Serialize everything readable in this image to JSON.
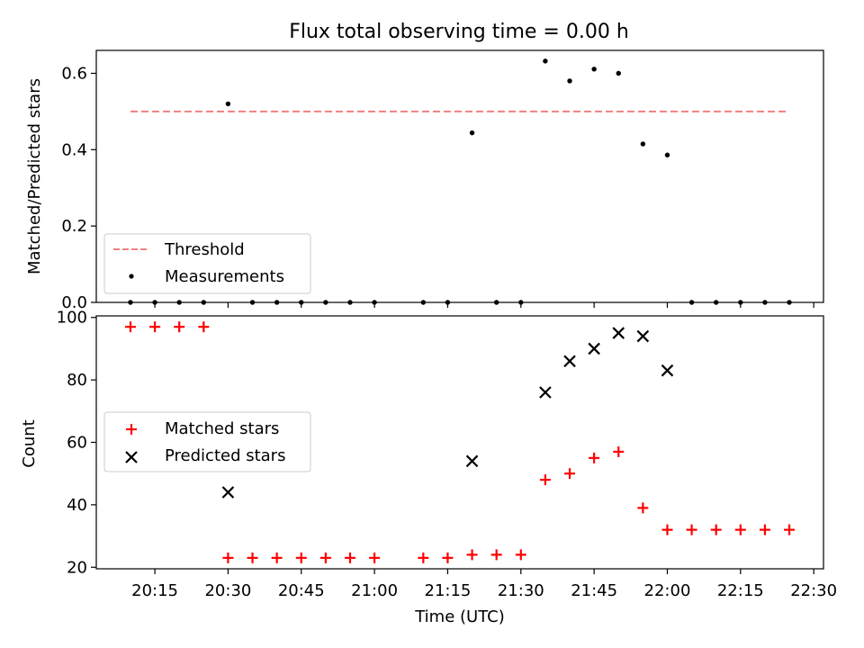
{
  "chart_data": [
    {
      "type": "scatter",
      "title": "Flux total observing time = 0.00 h",
      "ylabel": "Matched/Predicted stars",
      "xlabel": "",
      "ylim": [
        0,
        0.66
      ],
      "yticks": [
        0.0,
        0.2,
        0.4,
        0.6
      ],
      "ytick_labels": [
        "0.0",
        "0.2",
        "0.4",
        "0.6"
      ],
      "grid": false,
      "legend_position": "lower-left",
      "series": [
        {
          "name": "Threshold",
          "kind": "dashed-line",
          "color": "#f08080",
          "x": [
            "20:10",
            "22:25"
          ],
          "y": [
            0.5,
            0.5
          ]
        },
        {
          "name": "Measurements",
          "kind": "dot",
          "color": "#000000",
          "x": [
            "20:10",
            "20:15",
            "20:20",
            "20:25",
            "20:30",
            "20:35",
            "20:40",
            "20:45",
            "20:50",
            "20:55",
            "21:00",
            "21:10",
            "21:15",
            "21:20",
            "21:25",
            "21:30",
            "21:35",
            "21:40",
            "21:45",
            "21:50",
            "21:55",
            "22:00",
            "22:05",
            "22:10",
            "22:15",
            "22:20",
            "22:25"
          ],
          "y": [
            0,
            0,
            0,
            0,
            0.52,
            0,
            0,
            0,
            0,
            0,
            0,
            0,
            0,
            0.444,
            0,
            0,
            0.632,
            0.58,
            0.611,
            0.6,
            0.415,
            0.386,
            0,
            0,
            0,
            0,
            0
          ]
        }
      ]
    },
    {
      "type": "scatter",
      "title": "",
      "xlabel": "Time (UTC)",
      "ylabel": "Count",
      "ylim": [
        19.5,
        100.5
      ],
      "yticks": [
        20,
        40,
        60,
        80,
        100
      ],
      "ytick_labels": [
        "20",
        "40",
        "60",
        "80",
        "100"
      ],
      "xlim": [
        "20:03",
        "22:32"
      ],
      "xticks": [
        "20:15",
        "20:30",
        "20:45",
        "21:00",
        "21:15",
        "21:30",
        "21:45",
        "22:00",
        "22:15",
        "22:30"
      ],
      "xtick_labels": [
        "20:15",
        "20:30",
        "20:45",
        "21:00",
        "21:15",
        "21:30",
        "21:45",
        "22:00",
        "22:15",
        "22:30"
      ],
      "grid": false,
      "legend_position": "center-left",
      "series": [
        {
          "name": "Matched stars",
          "kind": "plus",
          "color": "#ff0000",
          "x": [
            "20:10",
            "20:15",
            "20:20",
            "20:25",
            "20:30",
            "20:35",
            "20:40",
            "20:45",
            "20:50",
            "20:55",
            "21:00",
            "21:10",
            "21:15",
            "21:20",
            "21:25",
            "21:30",
            "21:35",
            "21:40",
            "21:45",
            "21:50",
            "21:55",
            "22:00",
            "22:05",
            "22:10",
            "22:15",
            "22:20",
            "22:25"
          ],
          "y": [
            97,
            97,
            97,
            97,
            23,
            23,
            23,
            23,
            23,
            23,
            23,
            23,
            23,
            24,
            24,
            24,
            48,
            50,
            55,
            57,
            39,
            32,
            32,
            32,
            32,
            32,
            32
          ]
        },
        {
          "name": "Predicted stars",
          "kind": "x",
          "color": "#000000",
          "x": [
            "20:30",
            "21:20",
            "21:35",
            "21:40",
            "21:45",
            "21:50",
            "21:55",
            "22:00"
          ],
          "y": [
            44,
            54,
            76,
            86,
            90,
            95,
            94,
            83
          ]
        }
      ]
    }
  ]
}
